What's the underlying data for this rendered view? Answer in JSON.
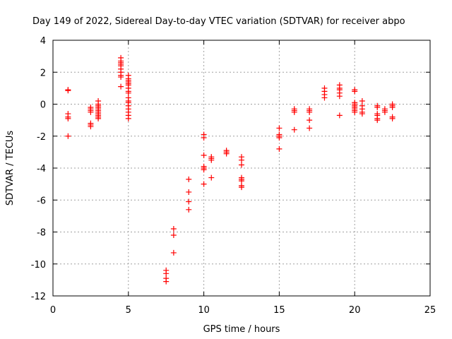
{
  "chart_data": {
    "type": "scatter",
    "title": "Day 149 of 2022, Sidereal Day-to-day VTEC variation (SDTVAR) for receiver abpo",
    "xlabel": "GPS time / hours",
    "ylabel": "SDTVAR / TECUs",
    "xlim": [
      0,
      25
    ],
    "ylim": [
      -12,
      4
    ],
    "xticks": [
      0,
      5,
      10,
      15,
      20,
      25
    ],
    "xtick_labels": [
      "0",
      "5",
      "10",
      "15",
      "20",
      "25"
    ],
    "yticks": [
      -12,
      -10,
      -8,
      -6,
      -4,
      -2,
      0,
      2,
      4
    ],
    "ytick_labels": [
      "-12",
      "-10",
      "-8",
      "-6",
      "-4",
      "-2",
      "0",
      "2",
      "4"
    ],
    "grid": true,
    "marker": "+",
    "color": "#ff0000",
    "series": [
      {
        "name": "SDTVAR",
        "points": [
          [
            1.0,
            0.9
          ],
          [
            1.0,
            0.85
          ],
          [
            1.0,
            -0.6
          ],
          [
            1.0,
            -0.8
          ],
          [
            1.0,
            -0.9
          ],
          [
            1.0,
            -2.0
          ],
          [
            2.5,
            -0.2
          ],
          [
            2.5,
            -0.3
          ],
          [
            2.5,
            -0.4
          ],
          [
            2.5,
            -0.5
          ],
          [
            2.5,
            -1.2
          ],
          [
            2.5,
            -1.3
          ],
          [
            2.5,
            -1.4
          ],
          [
            3.0,
            0.2
          ],
          [
            3.0,
            0.0
          ],
          [
            3.0,
            -0.1
          ],
          [
            3.0,
            -0.2
          ],
          [
            3.0,
            -0.3
          ],
          [
            3.0,
            -0.4
          ],
          [
            3.0,
            -0.5
          ],
          [
            3.0,
            -0.6
          ],
          [
            3.0,
            -0.7
          ],
          [
            3.0,
            -0.8
          ],
          [
            3.0,
            -0.9
          ],
          [
            4.5,
            2.9
          ],
          [
            4.5,
            2.7
          ],
          [
            4.5,
            2.6
          ],
          [
            4.5,
            2.5
          ],
          [
            4.5,
            2.4
          ],
          [
            4.5,
            2.2
          ],
          [
            4.5,
            2.0
          ],
          [
            4.5,
            1.8
          ],
          [
            4.5,
            1.7
          ],
          [
            4.5,
            1.1
          ],
          [
            5.0,
            1.8
          ],
          [
            5.0,
            1.6
          ],
          [
            5.0,
            1.5
          ],
          [
            5.0,
            1.4
          ],
          [
            5.0,
            1.3
          ],
          [
            5.0,
            1.2
          ],
          [
            5.0,
            1.0
          ],
          [
            5.0,
            0.8
          ],
          [
            5.0,
            0.7
          ],
          [
            5.0,
            0.4
          ],
          [
            5.0,
            0.2
          ],
          [
            5.0,
            0.1
          ],
          [
            5.0,
            -0.1
          ],
          [
            5.0,
            -0.3
          ],
          [
            5.0,
            -0.5
          ],
          [
            5.0,
            -0.7
          ],
          [
            5.0,
            -0.9
          ],
          [
            7.5,
            -10.4
          ],
          [
            7.5,
            -10.6
          ],
          [
            7.5,
            -10.9
          ],
          [
            7.5,
            -11.1
          ],
          [
            8.0,
            -7.8
          ],
          [
            8.0,
            -8.2
          ],
          [
            8.0,
            -9.3
          ],
          [
            9.0,
            -4.7
          ],
          [
            9.0,
            -5.5
          ],
          [
            9.0,
            -6.1
          ],
          [
            9.0,
            -6.6
          ],
          [
            10.0,
            -1.9
          ],
          [
            10.0,
            -2.1
          ],
          [
            10.0,
            -3.2
          ],
          [
            10.0,
            -3.9
          ],
          [
            10.0,
            -4.0
          ],
          [
            10.0,
            -4.1
          ],
          [
            10.0,
            -5.0
          ],
          [
            10.5,
            -3.3
          ],
          [
            10.5,
            -3.4
          ],
          [
            10.5,
            -3.5
          ],
          [
            10.5,
            -4.6
          ],
          [
            11.5,
            -2.9
          ],
          [
            11.5,
            -3.0
          ],
          [
            11.5,
            -3.1
          ],
          [
            12.5,
            -3.3
          ],
          [
            12.5,
            -3.5
          ],
          [
            12.5,
            -3.8
          ],
          [
            12.5,
            -4.6
          ],
          [
            12.5,
            -4.7
          ],
          [
            12.5,
            -4.8
          ],
          [
            12.5,
            -5.1
          ],
          [
            12.5,
            -5.2
          ],
          [
            15.0,
            -1.5
          ],
          [
            15.0,
            -1.9
          ],
          [
            15.0,
            -2.0
          ],
          [
            15.0,
            -2.1
          ],
          [
            15.0,
            -2.8
          ],
          [
            16.0,
            -0.3
          ],
          [
            16.0,
            -0.4
          ],
          [
            16.0,
            -0.5
          ],
          [
            16.0,
            -1.6
          ],
          [
            17.0,
            -0.3
          ],
          [
            17.0,
            -0.4
          ],
          [
            17.0,
            -0.5
          ],
          [
            17.0,
            -1.0
          ],
          [
            17.0,
            -1.5
          ],
          [
            18.0,
            1.0
          ],
          [
            18.0,
            0.8
          ],
          [
            18.0,
            0.6
          ],
          [
            18.0,
            0.4
          ],
          [
            19.0,
            1.2
          ],
          [
            19.0,
            1.0
          ],
          [
            19.0,
            0.9
          ],
          [
            19.0,
            0.7
          ],
          [
            19.0,
            0.5
          ],
          [
            19.0,
            -0.7
          ],
          [
            20.0,
            0.9
          ],
          [
            20.0,
            0.8
          ],
          [
            20.0,
            0.1
          ],
          [
            20.0,
            0.0
          ],
          [
            20.0,
            -0.1
          ],
          [
            20.0,
            -0.2
          ],
          [
            20.0,
            -0.3
          ],
          [
            20.0,
            -0.4
          ],
          [
            20.0,
            -0.5
          ],
          [
            20.5,
            0.2
          ],
          [
            20.5,
            -0.1
          ],
          [
            20.5,
            -0.3
          ],
          [
            20.5,
            -0.5
          ],
          [
            20.5,
            -0.6
          ],
          [
            21.5,
            -0.1
          ],
          [
            21.5,
            -0.2
          ],
          [
            21.5,
            -0.6
          ],
          [
            21.5,
            -0.7
          ],
          [
            21.5,
            -0.9
          ],
          [
            21.5,
            -1.0
          ],
          [
            22.0,
            -0.3
          ],
          [
            22.0,
            -0.4
          ],
          [
            22.0,
            -0.5
          ],
          [
            22.5,
            0.0
          ],
          [
            22.5,
            -0.1
          ],
          [
            22.5,
            -0.2
          ],
          [
            22.5,
            -0.8
          ],
          [
            22.5,
            -0.9
          ]
        ]
      }
    ]
  }
}
